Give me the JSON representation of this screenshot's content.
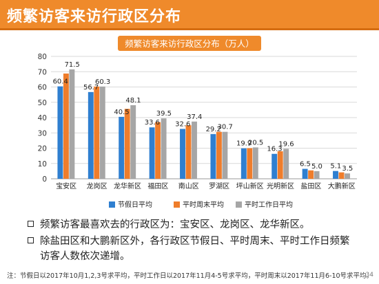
{
  "slide": {
    "title": "频繁访客来访行政区分布",
    "bullets": [
      "频繁访客最喜欢去的行政区为：宝安区、龙岗区、龙华新区。",
      "除盐田区和大鹏新区外，各行政区节假日、平时周末、平时工作日频繁访客人数依次递增。"
    ],
    "footnote": "注：节假日以2017年10月1,2,3号求平均，平时工作日以2017年11月4-5号求平均，平时周末以2017年11月6-10号求平均。",
    "page_number": "34"
  },
  "chart_data": {
    "type": "bar",
    "title": "频繁访客来访行政区分布（万人）",
    "categories": [
      "宝安区",
      "龙岗区",
      "龙华新区",
      "福田区",
      "南山区",
      "罗湖区",
      "坪山新区",
      "光明新区",
      "盐田区",
      "大鹏新区"
    ],
    "series": [
      {
        "name": "节假日平均",
        "color": "#2f7fd0",
        "values": [
          60.4,
          56.7,
          40.5,
          33.6,
          32.6,
          29.2,
          19.9,
          16.3,
          6.5,
          5.1
        ]
      },
      {
        "name": "平时周末平均",
        "color": "#ef7d2b",
        "values": [
          68.8,
          60.3,
          45.7,
          37.0,
          35.0,
          30.7,
          20.0,
          18.0,
          5.5,
          4.2
        ]
      },
      {
        "name": "平时工作日平均",
        "color": "#a6a6a6",
        "values": [
          71.5,
          60.3,
          48.1,
          39.5,
          37.4,
          30.7,
          20.5,
          19.6,
          5.0,
          3.5
        ]
      }
    ],
    "data_labels": [
      {
        "category": 0,
        "series": 0,
        "text": "60.4"
      },
      {
        "category": 0,
        "series": 2,
        "text": "71.5"
      },
      {
        "category": 1,
        "series": 0,
        "text": "56.7"
      },
      {
        "category": 1,
        "series": 2,
        "text": "60.3"
      },
      {
        "category": 2,
        "series": 0,
        "text": "40.5"
      },
      {
        "category": 2,
        "series": 2,
        "text": "48.1"
      },
      {
        "category": 3,
        "series": 0,
        "text": "33.6"
      },
      {
        "category": 3,
        "series": 2,
        "text": "39.5"
      },
      {
        "category": 4,
        "series": 0,
        "text": "32.6"
      },
      {
        "category": 4,
        "series": 2,
        "text": "37.4"
      },
      {
        "category": 5,
        "series": 0,
        "text": "29.2"
      },
      {
        "category": 5,
        "series": 2,
        "text": "30.7"
      },
      {
        "category": 6,
        "series": 0,
        "text": "19.9"
      },
      {
        "category": 6,
        "series": 2,
        "text": "20.5"
      },
      {
        "category": 7,
        "series": 0,
        "text": "16.3"
      },
      {
        "category": 7,
        "series": 2,
        "text": "19.6"
      },
      {
        "category": 8,
        "series": 0,
        "text": "6.5"
      },
      {
        "category": 8,
        "series": 2,
        "text": "5.0"
      },
      {
        "category": 9,
        "series": 0,
        "text": "5.1"
      },
      {
        "category": 9,
        "series": 2,
        "text": "3.5"
      }
    ],
    "xlabel": "",
    "ylabel": "",
    "ylim": [
      0,
      80
    ],
    "yticks": [
      0,
      10,
      20,
      30,
      40,
      50,
      60,
      70,
      80
    ],
    "grid": true,
    "legend": "bottom"
  }
}
